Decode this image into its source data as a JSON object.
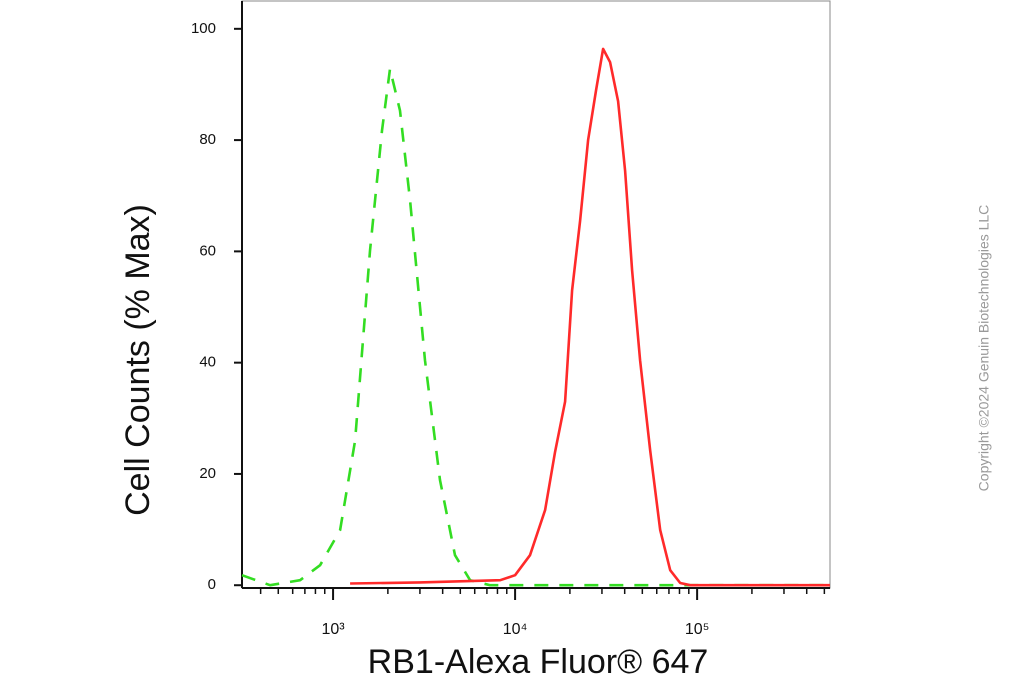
{
  "chart_data": {
    "type": "line",
    "ylabel": "Cell Counts (% Max)",
    "xlabel": "RB1-Alexa Fluor® 647",
    "xscale": "log",
    "xlim": [
      316,
      537000
    ],
    "xticks": [
      {
        "value": 1000,
        "label": "10³"
      },
      {
        "value": 10000,
        "label": "10⁴"
      },
      {
        "value": 100000,
        "label": "10⁵"
      }
    ],
    "xminorticks": [
      400,
      500,
      600,
      700,
      800,
      900,
      2000,
      3000,
      4000,
      5000,
      6000,
      7000,
      8000,
      9000,
      20000,
      30000,
      40000,
      50000,
      60000,
      70000,
      80000,
      90000,
      200000,
      300000,
      400000,
      500000
    ],
    "ylim": [
      -0.5,
      105
    ],
    "yticks": [
      0,
      20,
      40,
      60,
      80,
      100
    ],
    "series": [
      {
        "color": "#33dd22",
        "dash": true,
        "x": [
          316,
          451,
          659,
          849,
          1093,
          1321,
          1596,
          1858,
          2056,
          2333,
          2650,
          3201,
          3870,
          4677,
          5661,
          7290,
          537000
        ],
        "values": [
          1.8,
          0,
          0.9,
          3.6,
          9.9,
          26,
          60.1,
          81.7,
          92.8,
          85.3,
          69.1,
          40.4,
          18.9,
          5.4,
          0.9,
          0,
          0
        ]
      },
      {
        "color": "#ff2a2a",
        "dash": false,
        "x": [
          1240,
          3007,
          8280,
          10000,
          12080,
          14620,
          16590,
          18830,
          20570,
          22760,
          25180,
          27860,
          30460,
          33280,
          36810,
          40200,
          43950,
          48630,
          55200,
          62660,
          71120,
          80720,
          91620,
          537000
        ],
        "values": [
          0.3,
          0.5,
          0.9,
          1.8,
          5.4,
          13.5,
          24,
          33,
          53,
          65.5,
          80,
          89,
          96.4,
          94,
          87,
          74.5,
          56.6,
          40.4,
          24.2,
          9.9,
          2.7,
          0.4,
          0,
          0
        ]
      }
    ]
  },
  "watermark": "Copyright ©2024 Genuin Biotechnologies LLC"
}
